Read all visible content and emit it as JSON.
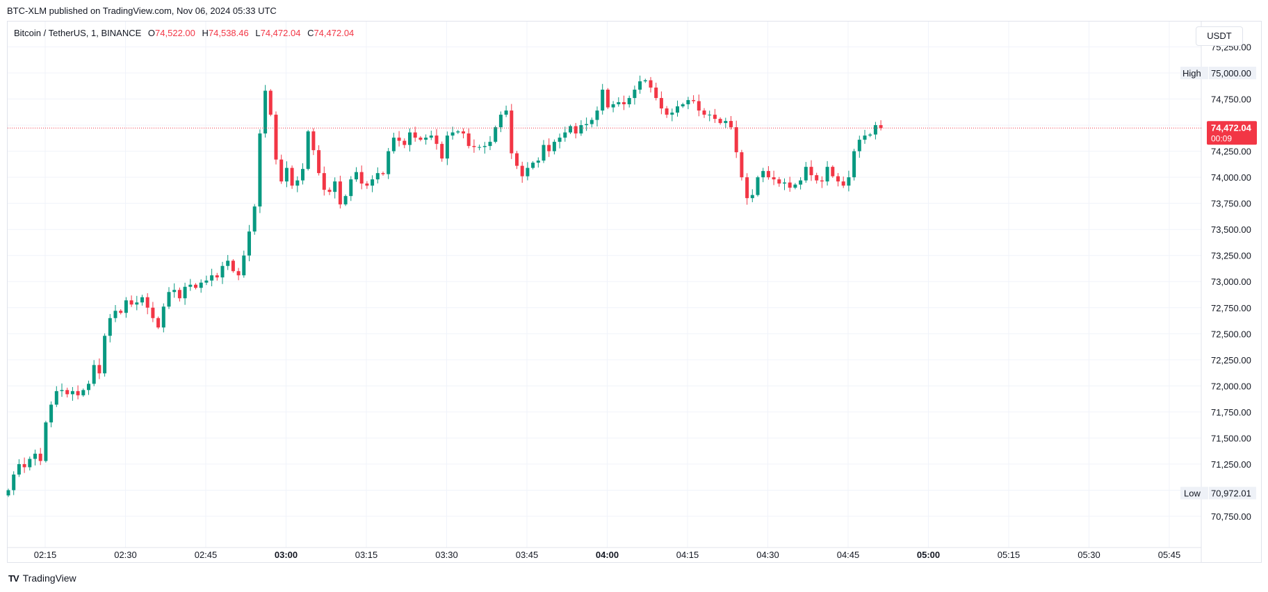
{
  "header": {
    "published": "BTC-XLM published on TradingView.com, Nov 06, 2024 05:33 UTC"
  },
  "legend": {
    "symbol": "Bitcoin / TetherUS, 1, BINANCE",
    "o_label": "O",
    "o_value": "74,522.00",
    "h_label": "H",
    "h_value": "74,538.46",
    "l_label": "L",
    "l_value": "74,472.04",
    "c_label": "C",
    "c_value": "74,472.04"
  },
  "currency": "USDT",
  "brand": {
    "name": "TradingView",
    "logo": "TV"
  },
  "colors": {
    "up": "#089981",
    "down": "#f23645",
    "grid": "#f0f3fa",
    "text": "#131722"
  },
  "chart_data": {
    "type": "candlestick",
    "timeframe": "1",
    "yaxis_labels": [
      "75,250.00",
      "75,000.00",
      "74,750.00",
      "74,500.00",
      "74,250.00",
      "74,000.00",
      "73,750.00",
      "73,500.00",
      "73,250.00",
      "73,000.00",
      "72,750.00",
      "72,500.00",
      "72,250.00",
      "72,000.00",
      "71,750.00",
      "71,500.00",
      "71,250.00",
      "71,000.00",
      "70,750.00"
    ],
    "xaxis_labels": [
      "02:15",
      "02:30",
      "02:45",
      "03:00",
      "03:15",
      "03:30",
      "03:45",
      "04:00",
      "04:15",
      "04:30",
      "04:45",
      "05:00",
      "05:15",
      "05:30",
      "05:45"
    ],
    "markers": {
      "high": {
        "label": "High",
        "value": "75,000.00"
      },
      "low": {
        "label": "Low",
        "value": "70,972.01"
      },
      "last": {
        "value": "74,472.04",
        "countdown": "00:09"
      }
    },
    "closes": [
      71000,
      71150,
      71250,
      71220,
      71300,
      71350,
      71280,
      71650,
      71820,
      71950,
      71960,
      71920,
      71950,
      71910,
      71960,
      72020,
      72200,
      72120,
      72480,
      72650,
      72720,
      72700,
      72820,
      72780,
      72800,
      72850,
      72750,
      72650,
      72560,
      72760,
      72900,
      72920,
      72840,
      72950,
      72970,
      72940,
      72990,
      73010,
      73060,
      73040,
      73150,
      73200,
      73100,
      73060,
      73250,
      73480,
      73720,
      74420,
      74830,
      74600,
      74170,
      73960,
      74090,
      73920,
      73970,
      74080,
      74440,
      74260,
      74040,
      73880,
      73860,
      73960,
      73740,
      73820,
      73980,
      74050,
      73940,
      73920,
      73980,
      74040,
      74030,
      74250,
      74380,
      74350,
      74310,
      74430,
      74380,
      74360,
      74380,
      74400,
      74320,
      74180,
      74400,
      74430,
      74440,
      74420,
      74300,
      74290,
      74290,
      74300,
      74340,
      74480,
      74600,
      74640,
      74230,
      74110,
      74010,
      74090,
      74140,
      74160,
      74310,
      74250,
      74340,
      74380,
      74430,
      74490,
      74420,
      74500,
      74510,
      74550,
      74640,
      74840,
      74670,
      74700,
      74720,
      74700,
      74760,
      74840,
      74920,
      74930,
      74860,
      74760,
      74660,
      74600,
      74620,
      74680,
      74700,
      74740,
      74730,
      74640,
      74600,
      74600,
      74560,
      74520,
      74540,
      74480,
      74240,
      74000,
      73800,
      73830,
      74000,
      74060,
      74000,
      73980,
      73940,
      73950,
      73900,
      73930,
      73970,
      74100,
      74020,
      73970,
      73960,
      74100,
      74010,
      73960,
      73920,
      74000,
      74250,
      74360,
      74400,
      74410,
      74500,
      74472
    ],
    "price_range_visible": [
      70650,
      75300
    ]
  }
}
